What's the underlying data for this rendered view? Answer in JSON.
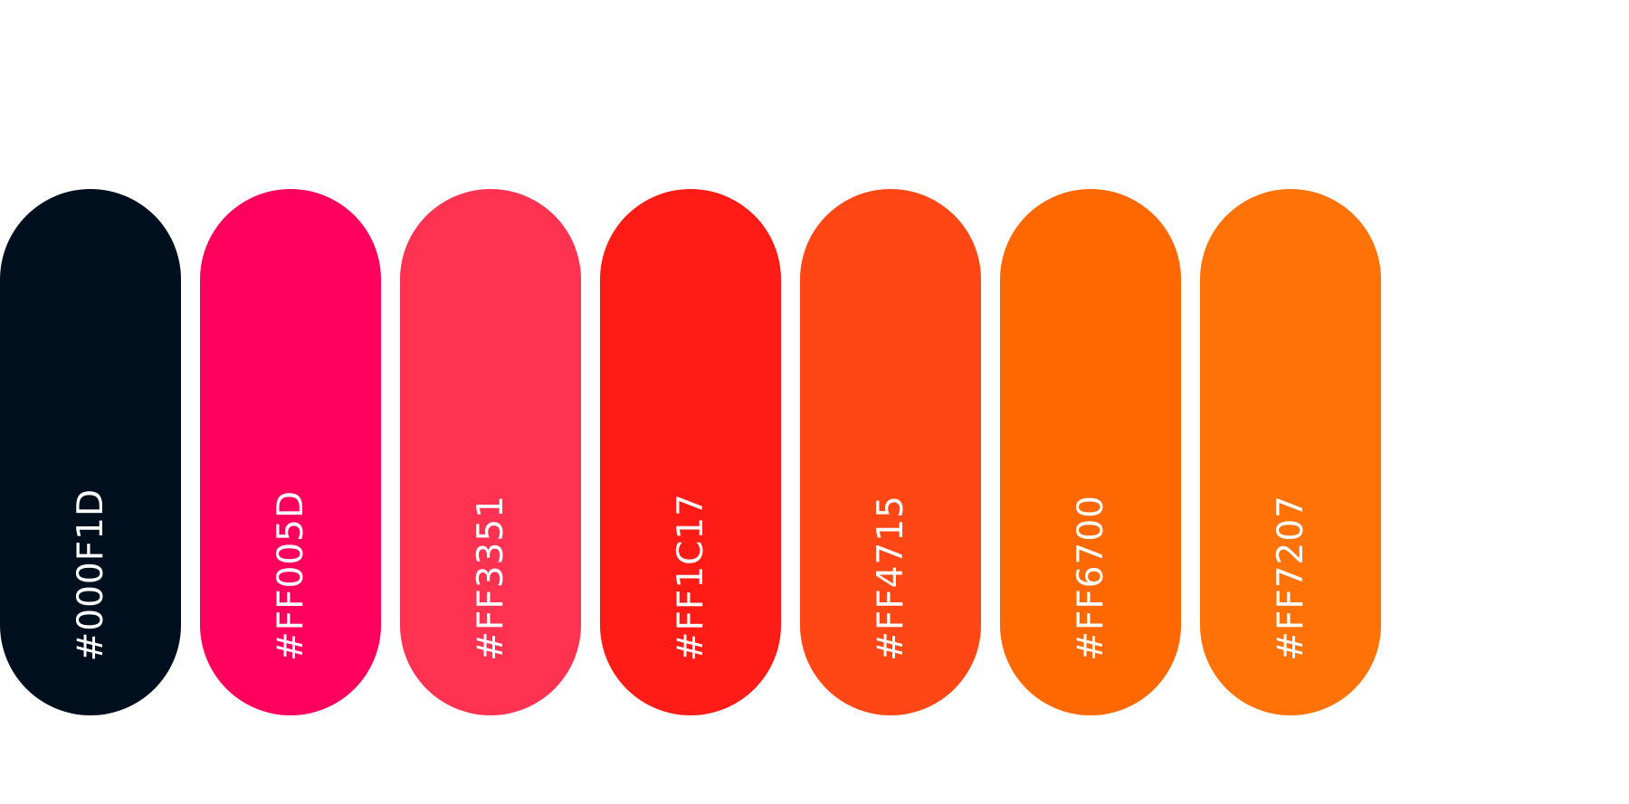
{
  "swatches": [
    {
      "label": "#000F1D",
      "color": "#000F1D"
    },
    {
      "label": "#FF005D",
      "color": "#FF005D"
    },
    {
      "label": "#FF3351",
      "color": "#FF3351"
    },
    {
      "label": "#FF1C17",
      "color": "#FF1C17"
    },
    {
      "label": "#FF4715",
      "color": "#FF4715"
    },
    {
      "label": "#FF6700",
      "color": "#FF6700"
    },
    {
      "label": "#FF7207",
      "color": "#FF7207"
    }
  ]
}
